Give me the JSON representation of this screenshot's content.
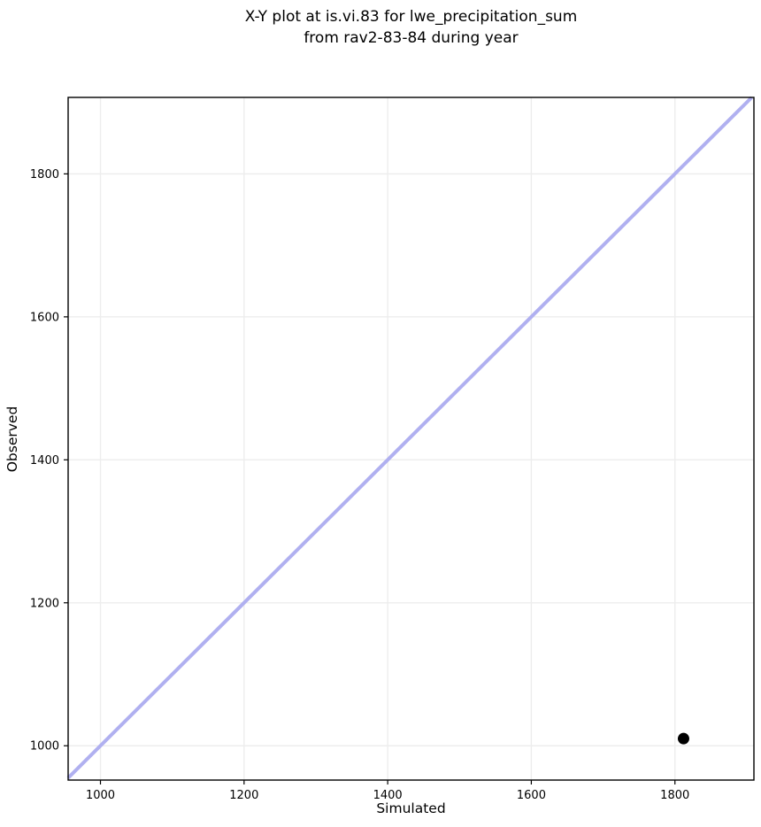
{
  "figure": {
    "background": "#ffffff"
  },
  "chart_data": {
    "type": "scatter",
    "title": "X-Y plot at is.vi.83 for lwe_precipitation_sum\nfrom rav2-83-84 during year",
    "title_lines": [
      "X-Y plot at is.vi.83 for lwe_precipitation_sum",
      "from rav2-83-84 during year"
    ],
    "xlabel": "Simulated",
    "ylabel": "Observed",
    "xlim": [
      955,
      1910
    ],
    "ylim": [
      952,
      1907
    ],
    "xticks": [
      1000,
      1200,
      1400,
      1600,
      1800
    ],
    "yticks": [
      1000,
      1200,
      1400,
      1600,
      1800
    ],
    "grid": true,
    "legend": "none",
    "identity_line": {
      "name": "one-to-one-line",
      "color": "#b0b0f0",
      "width": 4
    },
    "series": [
      {
        "name": "observed-vs-simulated",
        "marker": "circle",
        "color": "#000000",
        "radius": 6.5,
        "points": [
          {
            "x": 1812,
            "y": 1010
          }
        ]
      }
    ],
    "grid_color": "#ededed",
    "axis_color": "#000000",
    "tick_label_color": "#000000"
  }
}
